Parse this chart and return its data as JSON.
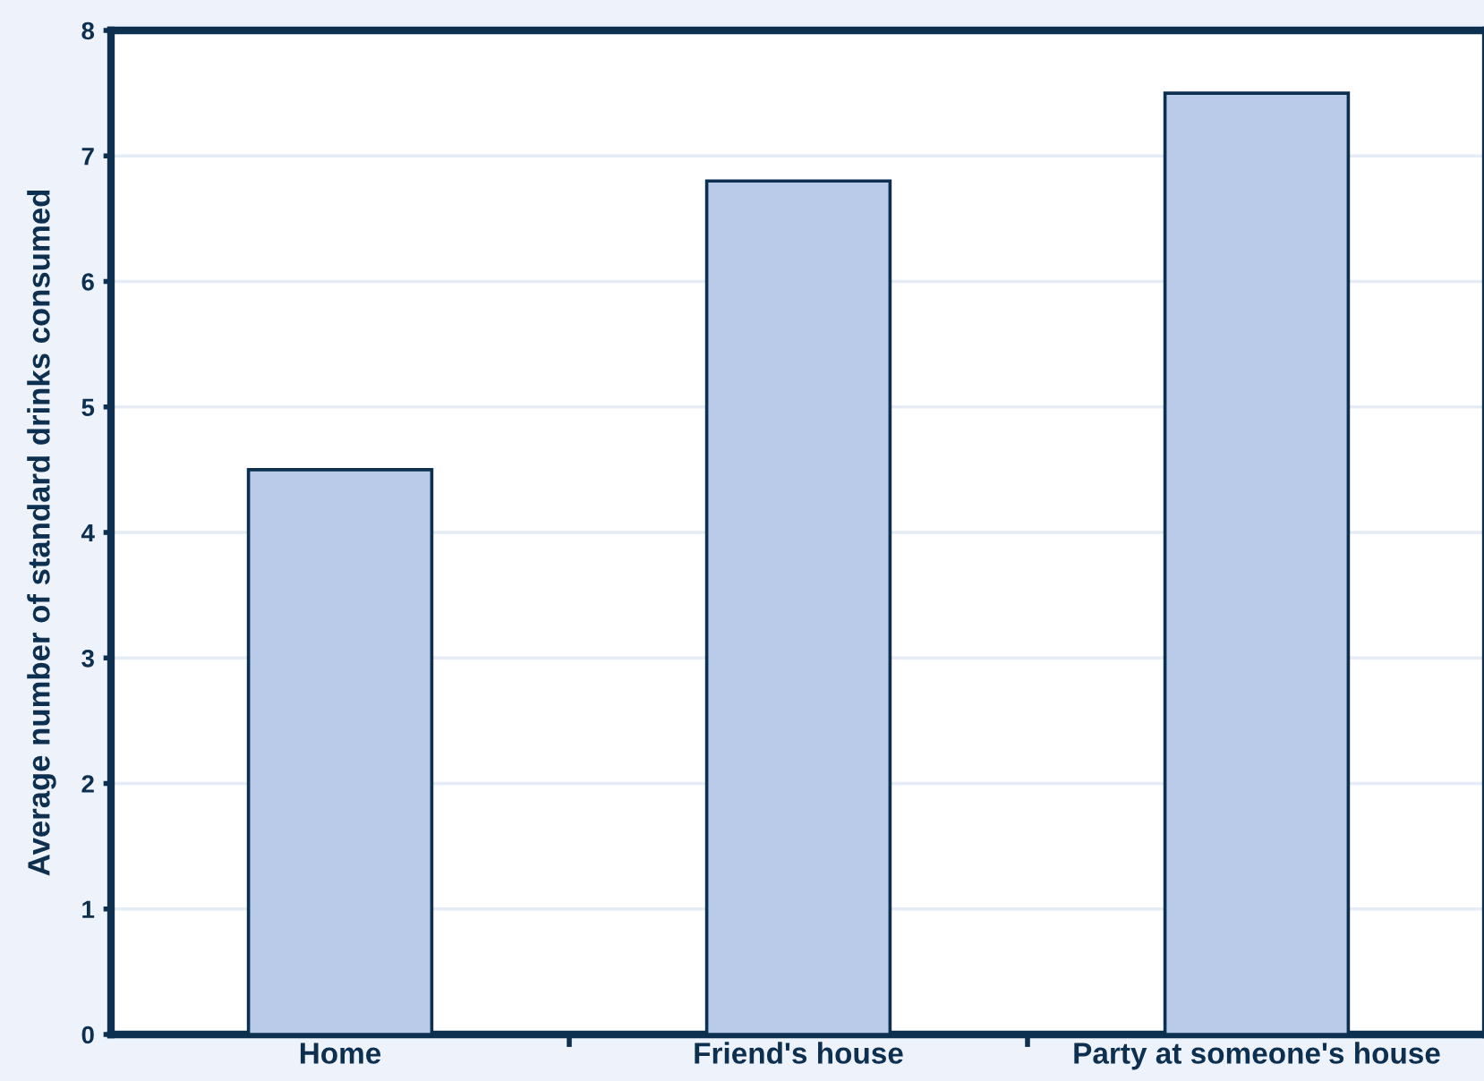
{
  "chart_data": {
    "type": "bar",
    "ylabel": "Average number of standard drinks consumed",
    "categories": [
      "Home",
      "Friend's house",
      "Party at someone's house"
    ],
    "values": [
      4.5,
      6.8,
      7.5
    ],
    "color": "#b9cbe8",
    "ylim": [
      0,
      8
    ],
    "yticks": [
      0,
      1,
      2,
      3,
      4,
      5,
      6,
      7,
      8
    ],
    "grid": "y"
  }
}
